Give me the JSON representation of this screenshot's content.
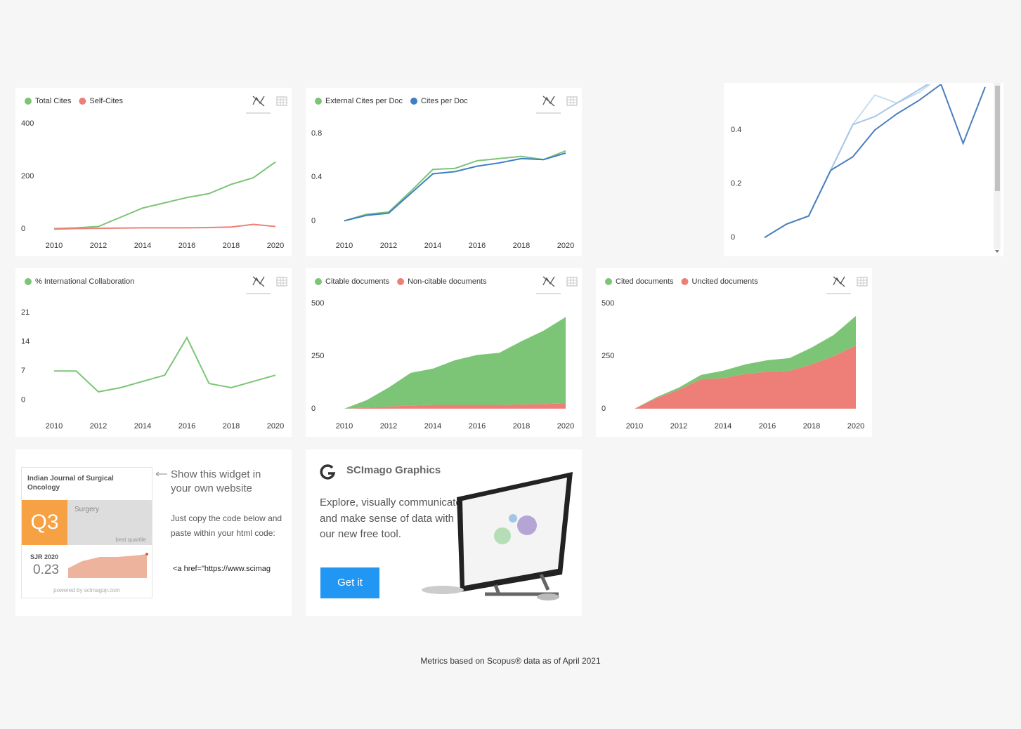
{
  "chart_data": [
    {
      "type": "line",
      "x": [
        2010,
        2011,
        2012,
        2013,
        2014,
        2015,
        2016,
        2017,
        2018,
        2019,
        2020
      ],
      "xlim": [
        2010,
        2020
      ],
      "xticks": [
        2010,
        2012,
        2014,
        2016,
        2018,
        2020
      ],
      "ylim": [
        -10,
        430
      ],
      "yticks": [
        0,
        200,
        400
      ],
      "series": [
        {
          "name": "Total Cites",
          "color": "#7cc576",
          "values": [
            2,
            5,
            10,
            45,
            80,
            100,
            120,
            135,
            170,
            195,
            255
          ]
        },
        {
          "name": "Self-Cites",
          "color": "#ee7f78",
          "values": [
            0,
            2,
            3,
            4,
            5,
            5,
            5,
            6,
            8,
            18,
            10
          ]
        }
      ]
    },
    {
      "type": "line",
      "x": [
        2010,
        2011,
        2012,
        2013,
        2014,
        2015,
        2016,
        2017,
        2018,
        2019,
        2020
      ],
      "xlim": [
        2010,
        2020
      ],
      "xticks": [
        2010,
        2012,
        2014,
        2016,
        2018,
        2020
      ],
      "ylim": [
        -0.1,
        0.96
      ],
      "yticks": [
        0,
        0.4,
        0.8
      ],
      "series": [
        {
          "name": "External Cites per Doc",
          "color": "#7cc576",
          "values": [
            0,
            0.06,
            0.08,
            0.27,
            0.47,
            0.48,
            0.55,
            0.57,
            0.59,
            0.56,
            0.64
          ]
        },
        {
          "name": "Cites per Doc",
          "color": "#3d7fc4",
          "values": [
            0,
            0.05,
            0.07,
            0.25,
            0.43,
            0.45,
            0.5,
            0.53,
            0.57,
            0.56,
            0.62
          ]
        }
      ]
    },
    {
      "type": "line",
      "ylim": [
        -0.01,
        0.57
      ],
      "yticks": [
        0,
        0.2,
        0.4
      ],
      "series": [
        {
          "color": "#c9dcf1",
          "values": [
            0,
            0.05,
            0.08,
            0.25,
            0.42,
            0.53,
            0.5,
            0.54,
            0.6,
            0.62,
            0.65
          ]
        },
        {
          "color": "#a7c6e6",
          "values": [
            0,
            0.05,
            0.08,
            0.25,
            0.42,
            0.45,
            0.5,
            0.55,
            0.6,
            0.6,
            0.62
          ]
        },
        {
          "color": "#4a7fc0",
          "values": [
            0,
            0.05,
            0.08,
            0.25,
            0.3,
            0.4,
            0.46,
            0.51,
            0.57,
            0.35,
            0.56
          ]
        }
      ]
    },
    {
      "type": "line",
      "x": [
        2010,
        2011,
        2012,
        2013,
        2014,
        2015,
        2016,
        2017,
        2018,
        2019,
        2020
      ],
      "xlim": [
        2010,
        2020
      ],
      "xticks": [
        2010,
        2012,
        2014,
        2016,
        2018,
        2020
      ],
      "ylim": [
        -2.9,
        24.9
      ],
      "yticks": [
        0,
        7,
        14,
        21
      ],
      "series": [
        {
          "name": "% International Collaboration",
          "color": "#7cc576",
          "values": [
            7,
            7,
            2,
            3,
            4.5,
            6,
            15,
            4,
            3,
            4.5,
            6
          ]
        }
      ]
    },
    {
      "type": "area",
      "x": [
        2010,
        2011,
        2012,
        2013,
        2014,
        2015,
        2016,
        2017,
        2018,
        2019,
        2020
      ],
      "xlim": [
        2010,
        2020
      ],
      "xticks": [
        2010,
        2012,
        2014,
        2016,
        2018,
        2020
      ],
      "ylim": [
        -17,
        533
      ],
      "yticks": [
        0,
        250,
        500
      ],
      "series": [
        {
          "name": "Citable documents",
          "color": "#7cc576",
          "values": [
            0,
            35,
            90,
            155,
            172,
            212,
            237,
            247,
            300,
            348,
            410
          ]
        },
        {
          "name": "Non-citable documents",
          "color": "#ee7f78",
          "values": [
            0,
            5,
            10,
            15,
            18,
            18,
            18,
            18,
            20,
            22,
            25
          ]
        }
      ]
    },
    {
      "type": "area",
      "x": [
        2010,
        2011,
        2012,
        2013,
        2014,
        2015,
        2016,
        2017,
        2018,
        2019,
        2020
      ],
      "xlim": [
        2010,
        2020
      ],
      "xticks": [
        2010,
        2012,
        2014,
        2016,
        2018,
        2020
      ],
      "ylim": [
        -17,
        533
      ],
      "yticks": [
        0,
        250,
        500
      ],
      "series": [
        {
          "name": "Cited documents",
          "color": "#7cc576",
          "values": [
            0,
            5,
            10,
            20,
            35,
            45,
            55,
            60,
            80,
            100,
            140
          ]
        },
        {
          "name": "Uncited documents",
          "color": "#ee7f78",
          "values": [
            0,
            50,
            90,
            140,
            145,
            165,
            175,
            180,
            210,
            250,
            300
          ]
        }
      ]
    }
  ],
  "widget": {
    "journal": "Indian Journal of Surgical Oncology",
    "quartile": "Q3",
    "category": "Surgery",
    "best": "best quartile",
    "sjr_label": "SJR 2020",
    "sjr_value": 0.23,
    "powered": "powered by scimagojr.com",
    "prompt": "Show this widget in your own website",
    "instructions": "Just copy the code below and paste within your html code:",
    "code": "<a href=\"https://www.scimag"
  },
  "graphics": {
    "title": "SCImago Graphics",
    "text": "Explore, visually communicate and make sense of data with our new free tool.",
    "button": "Get it"
  },
  "footer": "Metrics based on Scopus® data as of April 2021"
}
